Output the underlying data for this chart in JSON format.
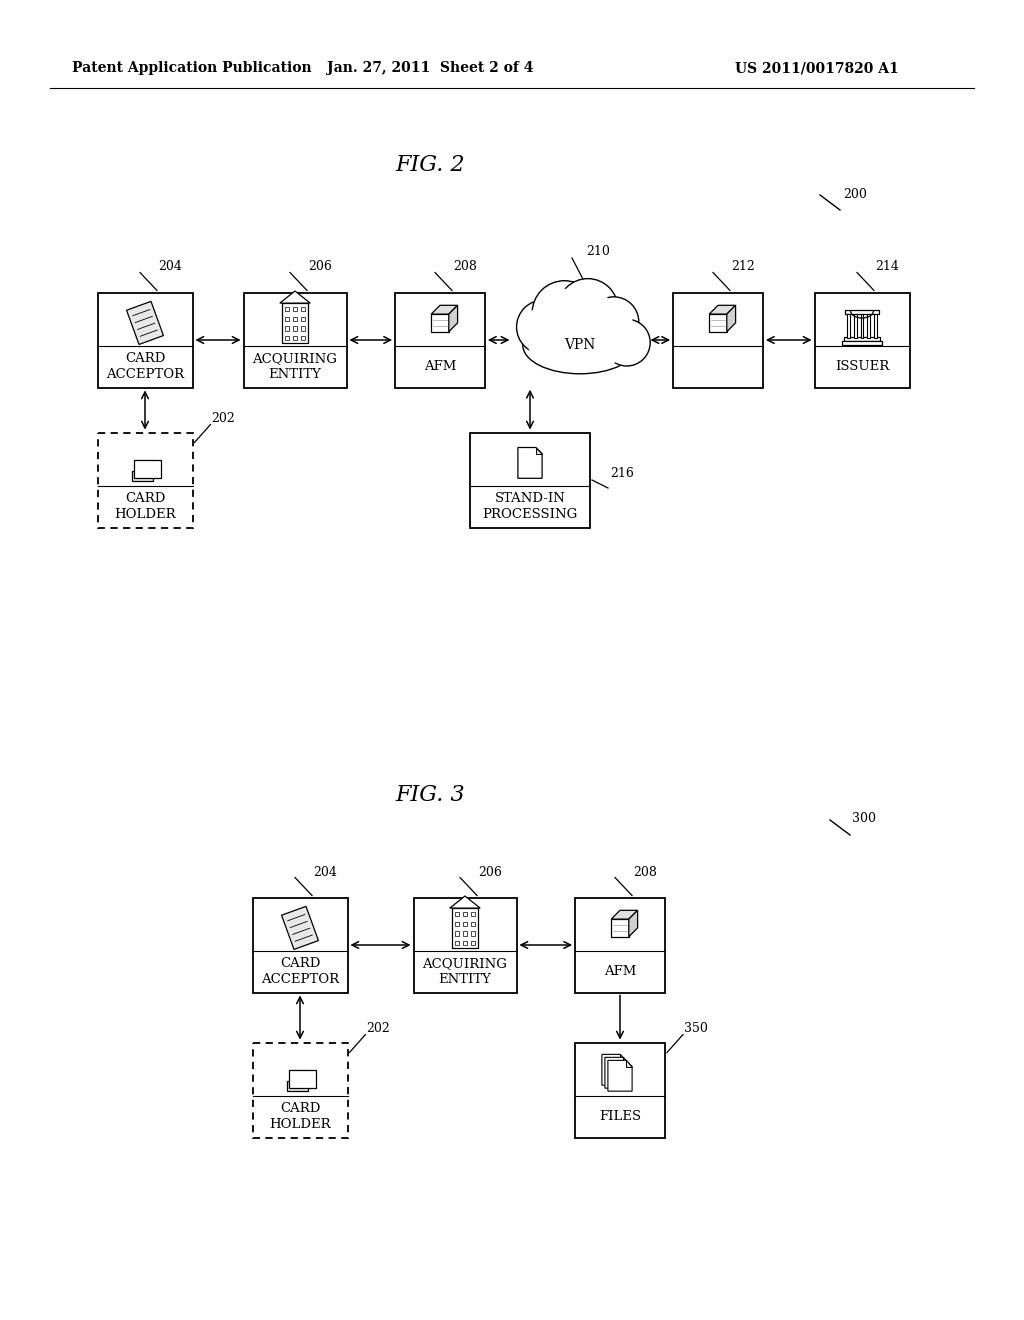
{
  "bg_color": "#ffffff",
  "header_left": "Patent Application Publication",
  "header_mid": "Jan. 27, 2011  Sheet 2 of 4",
  "header_right": "US 2011/0017820 A1",
  "fig2_title": "FIG. 2",
  "fig3_title": "FIG. 3"
}
